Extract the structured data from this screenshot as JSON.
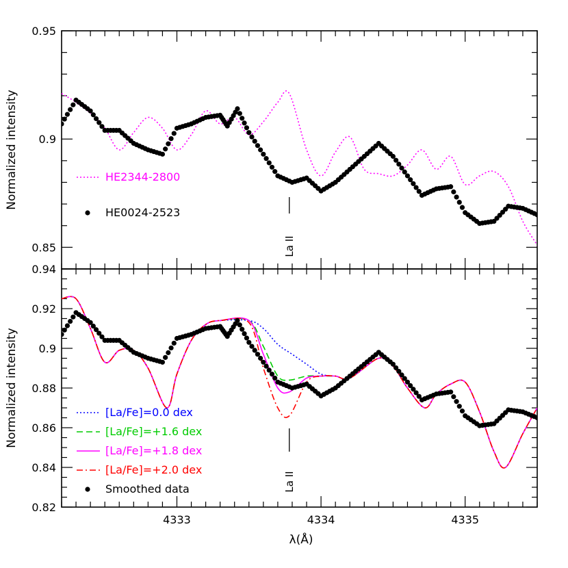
{
  "chart_data": [
    {
      "type": "line",
      "name": "top-panel",
      "ylabel": "Normalized intensity",
      "xlabel": "",
      "xlim": [
        4332.2,
        4335.5
      ],
      "ylim": [
        0.84,
        0.95
      ],
      "xticks": [
        4333,
        4334,
        4335
      ],
      "yticks": [
        0.85,
        0.9,
        0.95
      ],
      "ytick_labels": [
        "0.85",
        "0.9",
        "0.95"
      ],
      "show_x_tick_labels": false,
      "annotation": {
        "text": "La II",
        "x": 4333.78
      },
      "series": [
        {
          "name": "HE2344-2800",
          "style": "dotted",
          "color": "#ff00ff",
          "x": [
            4332.2,
            4332.3,
            4332.4,
            4332.5,
            4332.6,
            4332.7,
            4332.8,
            4332.9,
            4333.0,
            4333.1,
            4333.2,
            4333.3,
            4333.4,
            4333.5,
            4333.6,
            4333.7,
            4333.78,
            4333.9,
            4334.0,
            4334.1,
            4334.2,
            4334.3,
            4334.4,
            4334.5,
            4334.6,
            4334.7,
            4334.8,
            4334.9,
            4335.0,
            4335.1,
            4335.2,
            4335.3,
            4335.4,
            4335.5
          ],
          "y": [
            0.921,
            0.917,
            0.912,
            0.905,
            0.895,
            0.903,
            0.91,
            0.905,
            0.895,
            0.902,
            0.913,
            0.907,
            0.91,
            0.902,
            0.908,
            0.917,
            0.921,
            0.895,
            0.883,
            0.894,
            0.901,
            0.886,
            0.884,
            0.883,
            0.888,
            0.895,
            0.886,
            0.892,
            0.879,
            0.883,
            0.885,
            0.878,
            0.862,
            0.851
          ]
        },
        {
          "name": "HE0024-2523",
          "style": "dots",
          "color": "#000000",
          "x": [
            4332.2,
            4332.3,
            4332.4,
            4332.5,
            4332.6,
            4332.7,
            4332.8,
            4332.9,
            4333.0,
            4333.1,
            4333.2,
            4333.3,
            4333.35,
            4333.42,
            4333.5,
            4333.6,
            4333.7,
            4333.8,
            4333.9,
            4334.0,
            4334.1,
            4334.2,
            4334.3,
            4334.4,
            4334.5,
            4334.6,
            4334.7,
            4334.8,
            4334.9,
            4335.0,
            4335.1,
            4335.2,
            4335.3,
            4335.4,
            4335.5
          ],
          "y": [
            0.907,
            0.918,
            0.913,
            0.904,
            0.904,
            0.898,
            0.895,
            0.893,
            0.905,
            0.907,
            0.91,
            0.911,
            0.906,
            0.914,
            0.903,
            0.893,
            0.883,
            0.88,
            0.882,
            0.876,
            0.88,
            0.886,
            0.892,
            0.898,
            0.892,
            0.883,
            0.874,
            0.877,
            0.878,
            0.866,
            0.861,
            0.862,
            0.869,
            0.868,
            0.865
          ]
        }
      ],
      "legend": [
        {
          "label": "HE2344-2800",
          "style": "dotted",
          "color": "#ff00ff"
        },
        {
          "label": "HE0024-2523",
          "style": "dots",
          "color": "#000000"
        }
      ]
    },
    {
      "type": "line",
      "name": "bottom-panel",
      "ylabel": "Normalized intensity",
      "xlabel": "λ(Å)",
      "xlim": [
        4332.2,
        4335.5
      ],
      "ylim": [
        0.82,
        0.94
      ],
      "xticks": [
        4333,
        4334,
        4335
      ],
      "xtick_labels": [
        "4333",
        "4334",
        "4335"
      ],
      "yticks": [
        0.82,
        0.84,
        0.86,
        0.88,
        0.9,
        0.92,
        0.94
      ],
      "ytick_labels": [
        "0.82",
        "0.84",
        "0.86",
        "0.88",
        "0.9",
        "0.92",
        "0.94"
      ],
      "annotation": {
        "text": "La II",
        "x": 4333.78
      },
      "series": [
        {
          "name": "[La/Fe]=0.0 dex",
          "style": "dotted",
          "color": "#0000ff",
          "x": [
            4332.2,
            4332.3,
            4332.4,
            4332.5,
            4332.6,
            4332.7,
            4332.8,
            4332.93,
            4333.0,
            4333.1,
            4333.2,
            4333.3,
            4333.5,
            4333.6,
            4333.7,
            4333.8,
            4333.9,
            4334.0,
            4334.1,
            4334.2,
            4334.4,
            4334.5,
            4334.6,
            4334.72,
            4334.8,
            4334.9,
            4335.0,
            4335.1,
            4335.2,
            4335.28,
            4335.4,
            4335.5
          ],
          "y": [
            0.925,
            0.925,
            0.91,
            0.893,
            0.899,
            0.899,
            0.89,
            0.87,
            0.887,
            0.904,
            0.912,
            0.914,
            0.914,
            0.91,
            0.902,
            0.897,
            0.892,
            0.887,
            0.886,
            0.885,
            0.895,
            0.891,
            0.88,
            0.87,
            0.877,
            0.882,
            0.883,
            0.868,
            0.848,
            0.84,
            0.857,
            0.87
          ]
        },
        {
          "name": "[La/Fe]=+1.6 dex",
          "style": "dashed",
          "color": "#00cc00",
          "x": [
            4332.2,
            4332.3,
            4332.4,
            4332.5,
            4332.6,
            4332.7,
            4332.8,
            4332.93,
            4333.0,
            4333.1,
            4333.2,
            4333.3,
            4333.5,
            4333.6,
            4333.7,
            4333.78,
            4333.9,
            4334.0,
            4334.1,
            4334.2,
            4334.4,
            4334.5,
            4334.6,
            4334.72,
            4334.8,
            4334.9,
            4335.0,
            4335.1,
            4335.2,
            4335.28,
            4335.4,
            4335.5
          ],
          "y": [
            0.925,
            0.925,
            0.91,
            0.893,
            0.899,
            0.899,
            0.89,
            0.87,
            0.887,
            0.904,
            0.912,
            0.914,
            0.914,
            0.901,
            0.886,
            0.884,
            0.886,
            0.886,
            0.886,
            0.885,
            0.895,
            0.891,
            0.88,
            0.87,
            0.877,
            0.882,
            0.883,
            0.868,
            0.848,
            0.84,
            0.857,
            0.87
          ]
        },
        {
          "name": "[La/Fe]=+1.8 dex",
          "style": "solid",
          "color": "#ff00ff",
          "x": [
            4332.2,
            4332.3,
            4332.4,
            4332.5,
            4332.6,
            4332.7,
            4332.8,
            4332.93,
            4333.0,
            4333.1,
            4333.2,
            4333.3,
            4333.5,
            4333.6,
            4333.7,
            4333.78,
            4333.9,
            4334.0,
            4334.1,
            4334.2,
            4334.4,
            4334.5,
            4334.6,
            4334.72,
            4334.8,
            4334.9,
            4335.0,
            4335.1,
            4335.2,
            4335.28,
            4335.4,
            4335.5
          ],
          "y": [
            0.925,
            0.925,
            0.91,
            0.893,
            0.899,
            0.899,
            0.89,
            0.87,
            0.887,
            0.904,
            0.912,
            0.914,
            0.914,
            0.897,
            0.88,
            0.878,
            0.885,
            0.886,
            0.886,
            0.885,
            0.895,
            0.891,
            0.88,
            0.87,
            0.877,
            0.882,
            0.883,
            0.868,
            0.848,
            0.84,
            0.857,
            0.87
          ]
        },
        {
          "name": "[La/Fe]=+2.0 dex",
          "style": "dashdot",
          "color": "#ff0000",
          "x": [
            4332.2,
            4332.3,
            4332.4,
            4332.5,
            4332.6,
            4332.7,
            4332.8,
            4332.93,
            4333.0,
            4333.1,
            4333.2,
            4333.3,
            4333.5,
            4333.6,
            4333.7,
            4333.78,
            4333.9,
            4334.0,
            4334.1,
            4334.2,
            4334.4,
            4334.5,
            4334.6,
            4334.72,
            4334.8,
            4334.9,
            4335.0,
            4335.1,
            4335.2,
            4335.28,
            4335.4,
            4335.5
          ],
          "y": [
            0.925,
            0.925,
            0.91,
            0.893,
            0.899,
            0.899,
            0.89,
            0.87,
            0.887,
            0.904,
            0.912,
            0.914,
            0.913,
            0.89,
            0.87,
            0.866,
            0.883,
            0.886,
            0.886,
            0.885,
            0.895,
            0.891,
            0.88,
            0.87,
            0.877,
            0.882,
            0.883,
            0.868,
            0.848,
            0.84,
            0.857,
            0.87
          ]
        },
        {
          "name": "Smoothed data",
          "style": "dots",
          "color": "#000000",
          "x": [
            4332.2,
            4332.3,
            4332.4,
            4332.5,
            4332.6,
            4332.7,
            4332.8,
            4332.9,
            4333.0,
            4333.1,
            4333.2,
            4333.3,
            4333.35,
            4333.42,
            4333.5,
            4333.6,
            4333.7,
            4333.8,
            4333.9,
            4334.0,
            4334.1,
            4334.2,
            4334.3,
            4334.4,
            4334.5,
            4334.6,
            4334.7,
            4334.8,
            4334.9,
            4335.0,
            4335.1,
            4335.2,
            4335.3,
            4335.4,
            4335.5
          ],
          "y": [
            0.907,
            0.918,
            0.913,
            0.904,
            0.904,
            0.898,
            0.895,
            0.893,
            0.905,
            0.907,
            0.91,
            0.911,
            0.906,
            0.914,
            0.903,
            0.893,
            0.883,
            0.88,
            0.882,
            0.876,
            0.88,
            0.886,
            0.892,
            0.898,
            0.892,
            0.883,
            0.874,
            0.877,
            0.878,
            0.866,
            0.861,
            0.862,
            0.869,
            0.868,
            0.865
          ]
        }
      ],
      "legend": [
        {
          "label": "[La/Fe]=0.0 dex",
          "style": "dotted",
          "color": "#0000ff"
        },
        {
          "label": "[La/Fe]=+1.6 dex",
          "style": "dashed",
          "color": "#00cc00"
        },
        {
          "label": "[La/Fe]=+1.8 dex",
          "style": "solid",
          "color": "#ff00ff"
        },
        {
          "label": "[La/Fe]=+2.0 dex",
          "style": "dashdot",
          "color": "#ff0000"
        },
        {
          "label": "Smoothed data",
          "style": "dots",
          "color": "#000000"
        }
      ]
    }
  ]
}
